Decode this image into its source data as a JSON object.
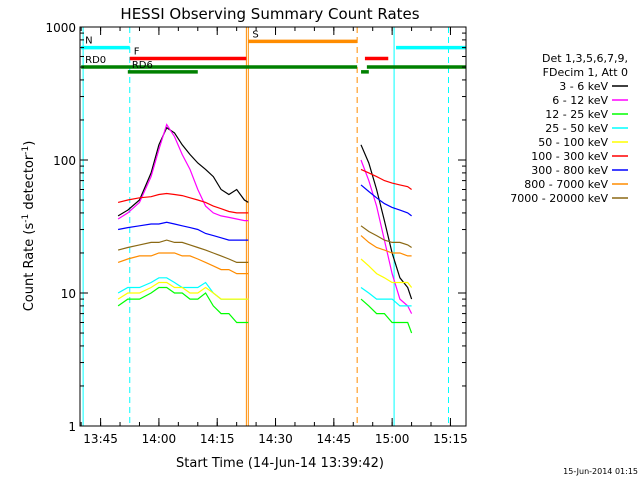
{
  "chart_data": {
    "type": "line",
    "title": "HESSI Observing Summary Count Rates",
    "xlabel": "Start Time (14-Jun-14 13:39:42)",
    "ylabel_parts": [
      "Count Rate (s",
      "-1",
      " detector",
      "-1",
      ")"
    ],
    "y_scale": "log",
    "ylim": [
      1,
      1000
    ],
    "xlim": [
      "13:39:42",
      "15:19:00"
    ],
    "y_ticks": [
      "1",
      "10",
      "100",
      "1000"
    ],
    "x_ticks": [
      "13:45",
      "14:00",
      "14:15",
      "14:30",
      "14:45",
      "15:00",
      "15:15"
    ],
    "date_stamp": "15-Jun-2014 01:15",
    "legend_header": [
      "Det 1,3,5,6,7,9,",
      "FDecim 1, Att 0"
    ],
    "grid": false,
    "legend_placement": "right",
    "series": [
      {
        "name": "3 - 6 keV",
        "color": "#000000",
        "x": [
          "13:49:30",
          "13:52:00",
          "13:55:00",
          "13:58:00",
          "14:00:00",
          "14:02:00",
          "14:04:00",
          "14:06:00",
          "14:08:00",
          "14:10:00",
          "14:12:00",
          "14:14:00",
          "14:16:00",
          "14:18:00",
          "14:20:00",
          "14:22:00",
          "14:23:00",
          "14:52:00",
          "14:54:00",
          "14:56:00",
          "14:58:00",
          "15:00:00",
          "15:02:00",
          "15:04:00",
          "15:05:00"
        ],
        "values": [
          38,
          42,
          50,
          80,
          130,
          175,
          160,
          130,
          110,
          95,
          85,
          75,
          60,
          55,
          60,
          50,
          48,
          130,
          95,
          60,
          35,
          20,
          13,
          11,
          9
        ]
      },
      {
        "name": "6 - 12 keV",
        "color": "#ff00ff",
        "x": [
          "13:49:30",
          "13:52:00",
          "13:55:00",
          "13:58:00",
          "14:00:00",
          "14:02:00",
          "14:04:00",
          "14:06:00",
          "14:08:00",
          "14:10:00",
          "14:12:00",
          "14:14:00",
          "14:16:00",
          "14:18:00",
          "14:20:00",
          "14:22:00",
          "14:23:00",
          "14:52:00",
          "14:54:00",
          "14:56:00",
          "14:58:00",
          "15:00:00",
          "15:02:00",
          "15:04:00",
          "15:05:00"
        ],
        "values": [
          36,
          40,
          48,
          75,
          120,
          185,
          150,
          110,
          85,
          60,
          45,
          40,
          38,
          37,
          36,
          35,
          35,
          100,
          70,
          45,
          25,
          14,
          9,
          8,
          7
        ]
      },
      {
        "name": "12 - 25 keV",
        "color": "#00ff00",
        "x": [
          "13:49:30",
          "13:52:00",
          "13:55:00",
          "13:58:00",
          "14:00:00",
          "14:02:00",
          "14:04:00",
          "14:06:00",
          "14:08:00",
          "14:10:00",
          "14:12:00",
          "14:14:00",
          "14:16:00",
          "14:18:00",
          "14:20:00",
          "14:22:00",
          "14:23:00",
          "14:52:00",
          "14:54:00",
          "14:56:00",
          "14:58:00",
          "15:00:00",
          "15:02:00",
          "15:04:00",
          "15:05:00"
        ],
        "values": [
          8,
          9,
          9,
          10,
          11,
          11,
          10,
          10,
          9,
          9,
          10,
          8,
          7,
          7,
          6,
          6,
          6,
          9,
          8,
          7,
          7,
          6,
          6,
          6,
          5
        ]
      },
      {
        "name": "25 - 50 keV",
        "color": "#00ffff",
        "x": [
          "13:49:30",
          "13:52:00",
          "13:55:00",
          "13:58:00",
          "14:00:00",
          "14:02:00",
          "14:04:00",
          "14:06:00",
          "14:08:00",
          "14:10:00",
          "14:12:00",
          "14:14:00",
          "14:16:00",
          "14:18:00",
          "14:20:00",
          "14:22:00",
          "14:23:00",
          "14:52:00",
          "14:54:00",
          "14:56:00",
          "14:58:00",
          "15:00:00",
          "15:02:00",
          "15:04:00",
          "15:05:00"
        ],
        "values": [
          10,
          11,
          11,
          12,
          13,
          13,
          12,
          11,
          11,
          11,
          12,
          10,
          9,
          9,
          9,
          9,
          9,
          11,
          10,
          9,
          9,
          9,
          8,
          8,
          8
        ]
      },
      {
        "name": "50 - 100 keV",
        "color": "#ffff00",
        "x": [
          "13:49:30",
          "13:52:00",
          "13:55:00",
          "13:58:00",
          "14:00:00",
          "14:02:00",
          "14:04:00",
          "14:06:00",
          "14:08:00",
          "14:10:00",
          "14:12:00",
          "14:14:00",
          "14:16:00",
          "14:18:00",
          "14:20:00",
          "14:22:00",
          "14:23:00",
          "14:52:00",
          "14:54:00",
          "14:56:00",
          "14:58:00",
          "15:00:00",
          "15:02:00",
          "15:04:00",
          "15:05:00"
        ],
        "values": [
          9,
          10,
          10,
          11,
          12,
          12,
          11,
          11,
          10,
          10,
          11,
          10,
          9,
          9,
          9,
          9,
          9,
          18,
          16,
          14,
          13,
          12,
          12,
          12,
          11
        ]
      },
      {
        "name": "100 - 300 keV",
        "color": "#ff0000",
        "x": [
          "13:49:30",
          "13:52:00",
          "13:55:00",
          "13:58:00",
          "14:00:00",
          "14:02:00",
          "14:04:00",
          "14:06:00",
          "14:08:00",
          "14:10:00",
          "14:12:00",
          "14:14:00",
          "14:16:00",
          "14:18:00",
          "14:20:00",
          "14:22:00",
          "14:23:00",
          "14:52:00",
          "14:54:00",
          "14:56:00",
          "14:58:00",
          "15:00:00",
          "15:02:00",
          "15:04:00",
          "15:05:00"
        ],
        "values": [
          48,
          50,
          52,
          53,
          55,
          56,
          55,
          54,
          52,
          50,
          48,
          45,
          43,
          41,
          40,
          40,
          40,
          85,
          80,
          75,
          70,
          67,
          65,
          63,
          60
        ]
      },
      {
        "name": "300 - 800 keV",
        "color": "#0000ff",
        "x": [
          "13:49:30",
          "13:52:00",
          "13:55:00",
          "13:58:00",
          "14:00:00",
          "14:02:00",
          "14:04:00",
          "14:06:00",
          "14:08:00",
          "14:10:00",
          "14:12:00",
          "14:14:00",
          "14:16:00",
          "14:18:00",
          "14:20:00",
          "14:22:00",
          "14:23:00",
          "14:52:00",
          "14:54:00",
          "14:56:00",
          "14:58:00",
          "15:00:00",
          "15:02:00",
          "15:04:00",
          "15:05:00"
        ],
        "values": [
          30,
          31,
          32,
          33,
          33,
          34,
          33,
          32,
          31,
          30,
          28,
          27,
          26,
          25,
          25,
          25,
          25,
          65,
          58,
          52,
          47,
          44,
          42,
          40,
          38
        ]
      },
      {
        "name": "800 - 7000 keV",
        "color": "#ff8c00",
        "x": [
          "13:49:30",
          "13:52:00",
          "13:55:00",
          "13:58:00",
          "14:00:00",
          "14:02:00",
          "14:04:00",
          "14:06:00",
          "14:08:00",
          "14:10:00",
          "14:12:00",
          "14:14:00",
          "14:16:00",
          "14:18:00",
          "14:20:00",
          "14:22:00",
          "14:23:00",
          "14:52:00",
          "14:54:00",
          "14:56:00",
          "14:58:00",
          "15:00:00",
          "15:02:00",
          "15:04:00",
          "15:05:00"
        ],
        "values": [
          17,
          18,
          19,
          19,
          20,
          20,
          20,
          19,
          19,
          18,
          17,
          16,
          15,
          15,
          14,
          14,
          14,
          27,
          24,
          22,
          21,
          20,
          20,
          19,
          19
        ]
      },
      {
        "name": "7000 - 20000 keV",
        "color": "#8b6914",
        "x": [
          "13:49:30",
          "13:52:00",
          "13:55:00",
          "13:58:00",
          "14:00:00",
          "14:02:00",
          "14:04:00",
          "14:06:00",
          "14:08:00",
          "14:10:00",
          "14:12:00",
          "14:14:00",
          "14:16:00",
          "14:18:00",
          "14:20:00",
          "14:22:00",
          "14:23:00",
          "14:52:00",
          "14:54:00",
          "14:56:00",
          "14:58:00",
          "15:00:00",
          "15:02:00",
          "15:04:00",
          "15:05:00"
        ],
        "values": [
          21,
          22,
          23,
          24,
          24,
          25,
          24,
          24,
          23,
          22,
          21,
          20,
          19,
          18,
          17,
          17,
          17,
          32,
          29,
          27,
          25,
          24,
          24,
          23,
          22
        ]
      }
    ],
    "flags": [
      {
        "label": "N",
        "color": "#00ffff",
        "label_color": "#00ffff",
        "level": 700,
        "segments": [
          [
            "13:40:00",
            "13:52:30"
          ],
          [
            "15:01:00",
            "15:19:00"
          ]
        ]
      },
      {
        "label": "S",
        "color": "#ff8c00",
        "label_color": "#ff8c00",
        "level": 780,
        "segments": [
          [
            "14:23:00",
            "14:51:00"
          ]
        ]
      },
      {
        "label": "F",
        "color": "#ff0000",
        "label_color": "#ff0000",
        "level": 580,
        "segments": [
          [
            "13:52:30",
            "14:22:30"
          ],
          [
            "14:53:00",
            "14:59:00"
          ]
        ]
      },
      {
        "label": "RD0",
        "color": "#008000",
        "label_color": "#008000",
        "level": 500,
        "segments": [
          [
            "13:40:00",
            "14:51:00"
          ],
          [
            "14:53:30",
            "15:19:00"
          ]
        ]
      },
      {
        "label": "RD6",
        "color": "#008000",
        "label_color": "#008000",
        "level": 460,
        "segments": [
          [
            "13:52:00",
            "14:10:00"
          ],
          [
            "14:52:00",
            "14:54:00"
          ]
        ]
      }
    ],
    "vertical_lines": [
      {
        "time": "13:40:30",
        "color": "#00ffff",
        "style": "solid"
      },
      {
        "time": "13:52:30",
        "color": "#00ffff",
        "style": "dashed"
      },
      {
        "time": "14:22:30",
        "color": "#ff8c00",
        "style": "solid"
      },
      {
        "time": "14:23:00",
        "color": "#ff8c00",
        "style": "solid"
      },
      {
        "time": "14:51:00",
        "color": "#ff8c00",
        "style": "dashed"
      },
      {
        "time": "15:00:30",
        "color": "#00ffff",
        "style": "solid"
      },
      {
        "time": "15:14:30",
        "color": "#00ffff",
        "style": "dashed"
      }
    ],
    "colors": {
      "axis": "#000000",
      "background": "#ffffff"
    }
  }
}
